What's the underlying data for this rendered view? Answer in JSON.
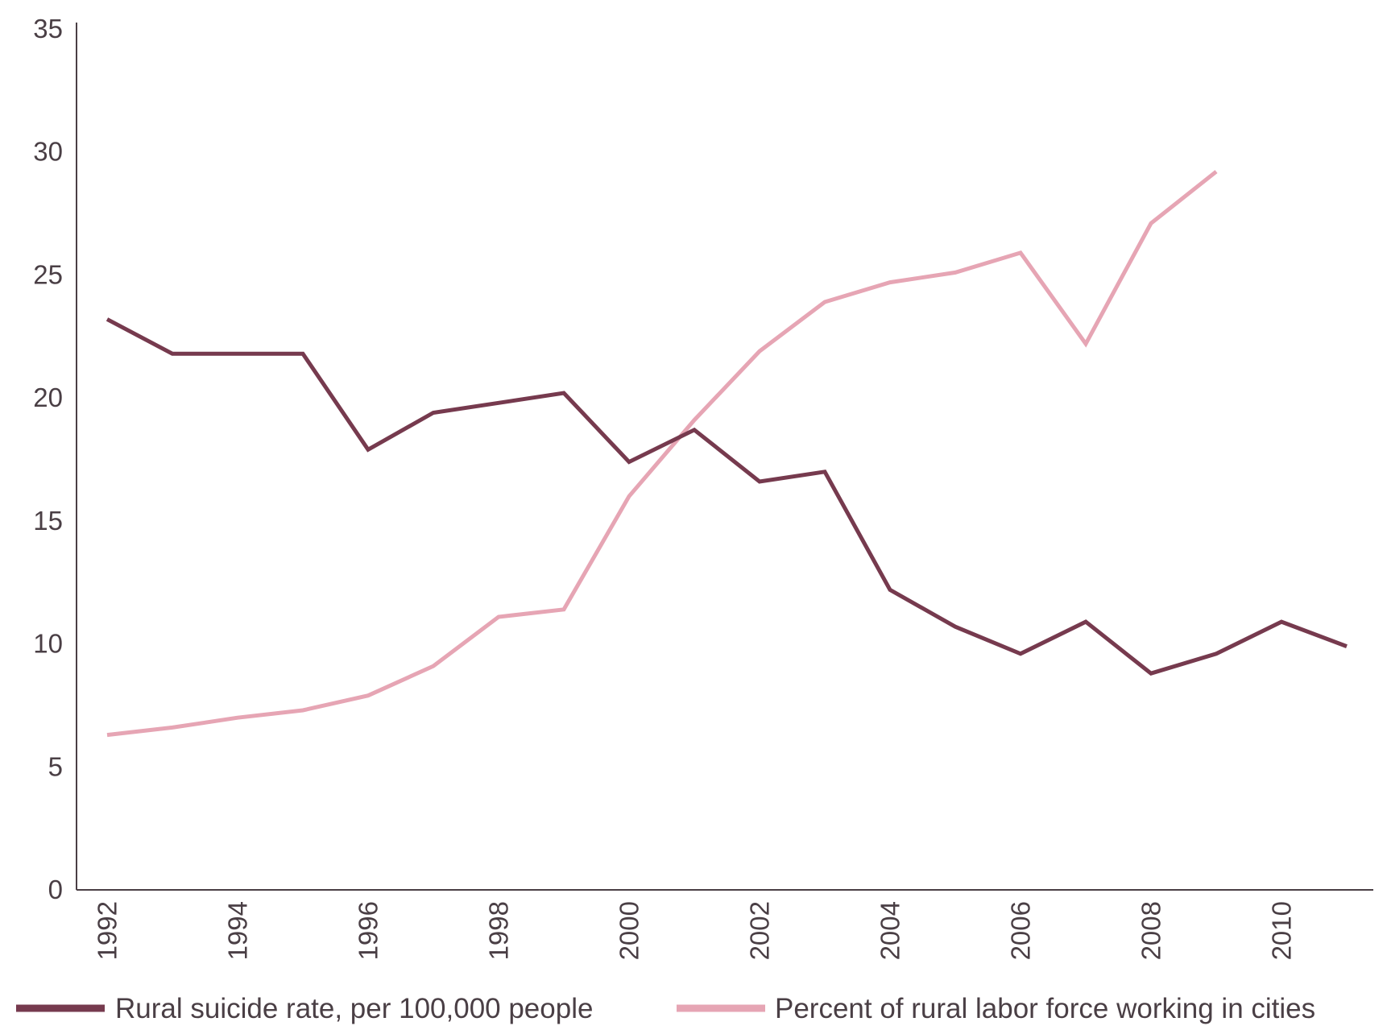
{
  "chart_data": {
    "type": "line",
    "title": "",
    "xlabel": "",
    "ylabel": "",
    "x": [
      1992,
      1993,
      1994,
      1995,
      1996,
      1997,
      1998,
      1999,
      2000,
      2001,
      2002,
      2003,
      2004,
      2005,
      2006,
      2007,
      2008,
      2009,
      2010,
      2011
    ],
    "xticks": [
      "1992",
      "1994",
      "1996",
      "1998",
      "2000",
      "2002",
      "2004",
      "2006",
      "2008",
      "2010"
    ],
    "yticks": [
      "0",
      "5",
      "10",
      "15",
      "20",
      "25",
      "30",
      "35"
    ],
    "ylim": [
      0,
      35
    ],
    "grid": false,
    "legend_position": "bottom",
    "series": [
      {
        "name": "Rural suicide rate, per 100,000 people",
        "color": "#763a4e",
        "values": [
          23.2,
          21.8,
          21.8,
          21.8,
          17.9,
          19.4,
          19.8,
          20.2,
          17.4,
          18.7,
          16.6,
          17.0,
          12.2,
          10.7,
          9.6,
          10.9,
          8.8,
          9.6,
          10.9,
          9.9
        ]
      },
      {
        "name": "Percent of rural labor force working in cities",
        "color": "#e6a5b4",
        "values": [
          6.3,
          6.6,
          7.0,
          7.3,
          7.9,
          9.1,
          11.1,
          11.4,
          16.0,
          19.1,
          21.9,
          23.9,
          24.7,
          25.1,
          25.9,
          22.2,
          27.1,
          29.2,
          null,
          null
        ]
      }
    ]
  }
}
